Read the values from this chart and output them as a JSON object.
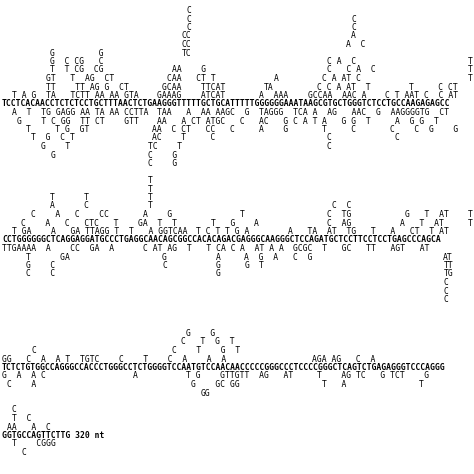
{
  "background": "#ffffff",
  "figsize": [
    4.74,
    4.74
  ],
  "dpi": 100,
  "lines": [
    {
      "row": 1,
      "text": "C",
      "col": 38,
      "bold": false
    },
    {
      "row": 2,
      "text": "C",
      "col": 38,
      "bold": false
    },
    {
      "row": 3,
      "text": "C",
      "col": 38,
      "bold": false
    },
    {
      "row": 4,
      "text": "CC",
      "col": 37,
      "bold": false
    },
    {
      "row": 5,
      "text": "CC",
      "col": 37,
      "bold": false
    },
    {
      "row": 2,
      "text": "C",
      "col": 72,
      "bold": false
    },
    {
      "row": 3,
      "text": "C",
      "col": 72,
      "bold": false
    },
    {
      "row": 4,
      "text": "A",
      "col": 72,
      "bold": false
    },
    {
      "row": 5,
      "text": "A  C",
      "col": 71,
      "bold": false
    },
    {
      "row": 6,
      "text": "G         G",
      "col": 10,
      "bold": false
    },
    {
      "row": 6,
      "text": "TC",
      "col": 37,
      "bold": false
    },
    {
      "row": 7,
      "text": "G  C CG   C",
      "col": 10,
      "bold": false
    },
    {
      "row": 7,
      "text": "C A  C",
      "col": 67,
      "bold": false
    },
    {
      "row": 7,
      "text": "T",
      "col": 96,
      "bold": false
    },
    {
      "row": 8,
      "text": "T  T CG  CG",
      "col": 10,
      "bold": false
    },
    {
      "row": 8,
      "text": "AA    G",
      "col": 35,
      "bold": false
    },
    {
      "row": 8,
      "text": "C   C A  C",
      "col": 67,
      "bold": false
    },
    {
      "row": 8,
      "text": "T",
      "col": 96,
      "bold": false
    },
    {
      "row": 9,
      "text": "GT   T  AG  CT",
      "col": 9,
      "bold": false
    },
    {
      "row": 9,
      "text": "CAA   CT T",
      "col": 34,
      "bold": false
    },
    {
      "row": 9,
      "text": "A",
      "col": 56,
      "bold": false
    },
    {
      "row": 9,
      "text": "C A AT C",
      "col": 66,
      "bold": false
    },
    {
      "row": 9,
      "text": "T",
      "col": 96,
      "bold": false
    },
    {
      "row": 10,
      "text": "TT    TT AG G  CT",
      "col": 9,
      "bold": false
    },
    {
      "row": 10,
      "text": "GCAA    TTCAT",
      "col": 33,
      "bold": false
    },
    {
      "row": 10,
      "text": "TA",
      "col": 54,
      "bold": false
    },
    {
      "row": 10,
      "text": "C C A AT  T",
      "col": 65,
      "bold": false
    },
    {
      "row": 10,
      "text": "T     C CT",
      "col": 84,
      "bold": false
    },
    {
      "row": 11,
      "text": "T A G  TA   TCTT AA AA GTA",
      "col": 2,
      "bold": false
    },
    {
      "row": 11,
      "text": "GAAAG    ATCAT",
      "col": 32,
      "bold": false
    },
    {
      "row": 11,
      "text": "A  AAA",
      "col": 53,
      "bold": false
    },
    {
      "row": 11,
      "text": "GCCAA  AAC A",
      "col": 63,
      "bold": false
    },
    {
      "row": 11,
      "text": "C T AAT C  C AT",
      "col": 79,
      "bold": false
    },
    {
      "row": 12,
      "text": "TCCTCACAACCTCTCTCCTGCTTTAACTCTGAAGGGTTTTTGCTGCATTTTTGGGGGGAAATAAGCGTGCTGGGTCTCCTGCCAAGAGAGCC",
      "col": 0,
      "bold": true
    },
    {
      "row": 13,
      "text": "A  T  TG GAGG AA TA AA CCTTA",
      "col": 2,
      "bold": false
    },
    {
      "row": 13,
      "text": "TAA   A  AA AAGC  G",
      "col": 32,
      "bold": false
    },
    {
      "row": 13,
      "text": "TAGGG  TCA A  AG   AAC  G  AAGGGGTG  CT",
      "col": 53,
      "bold": false
    },
    {
      "row": 14,
      "text": "G    T C GG  TT CT    GTT",
      "col": 3,
      "bold": false
    },
    {
      "row": 14,
      "text": "AA   A CT ATGC   C",
      "col": 32,
      "bold": false
    },
    {
      "row": 14,
      "text": "AC   G C A T",
      "col": 53,
      "bold": false
    },
    {
      "row": 14,
      "text": "A   G G  T",
      "col": 66,
      "bold": false
    },
    {
      "row": 14,
      "text": "A  G G  T",
      "col": 81,
      "bold": false
    },
    {
      "row": 15,
      "text": "T     T G  GT",
      "col": 5,
      "bold": false
    },
    {
      "row": 15,
      "text": "AA  C CT   CC   C",
      "col": 31,
      "bold": false
    },
    {
      "row": 15,
      "text": "A    G",
      "col": 53,
      "bold": false
    },
    {
      "row": 15,
      "text": "T     C",
      "col": 66,
      "bold": false
    },
    {
      "row": 15,
      "text": "C    C  G    G",
      "col": 80,
      "bold": false
    },
    {
      "row": 16,
      "text": "T  G  C T",
      "col": 6,
      "bold": false
    },
    {
      "row": 16,
      "text": "AC    T     C",
      "col": 31,
      "bold": false
    },
    {
      "row": 16,
      "text": "C",
      "col": 67,
      "bold": false
    },
    {
      "row": 16,
      "text": "C",
      "col": 81,
      "bold": false
    },
    {
      "row": 17,
      "text": "G    T",
      "col": 8,
      "bold": false
    },
    {
      "row": 17,
      "text": "TC    T",
      "col": 30,
      "bold": false
    },
    {
      "row": 17,
      "text": "C",
      "col": 67,
      "bold": false
    },
    {
      "row": 18,
      "text": "G",
      "col": 10,
      "bold": false
    },
    {
      "row": 18,
      "text": "C    G",
      "col": 30,
      "bold": false
    },
    {
      "row": 19,
      "text": "C    G",
      "col": 30,
      "bold": false
    },
    {
      "row": 21,
      "text": "T",
      "col": 30,
      "bold": false
    },
    {
      "row": 22,
      "text": "T",
      "col": 30,
      "bold": false
    },
    {
      "row": 23,
      "text": "T      T",
      "col": 10,
      "bold": false
    },
    {
      "row": 23,
      "text": "T",
      "col": 30,
      "bold": false
    },
    {
      "row": 24,
      "text": "A      C",
      "col": 10,
      "bold": false
    },
    {
      "row": 24,
      "text": "T",
      "col": 30,
      "bold": false
    },
    {
      "row": 24,
      "text": "C  C",
      "col": 68,
      "bold": false
    },
    {
      "row": 25,
      "text": "C    A   C    CC",
      "col": 6,
      "bold": false
    },
    {
      "row": 25,
      "text": "A    G",
      "col": 29,
      "bold": false
    },
    {
      "row": 25,
      "text": "T",
      "col": 49,
      "bold": false
    },
    {
      "row": 25,
      "text": "C  TG",
      "col": 67,
      "bold": false
    },
    {
      "row": 25,
      "text": "G   T  AT",
      "col": 83,
      "bold": false
    },
    {
      "row": 25,
      "text": "T",
      "col": 96,
      "bold": false
    },
    {
      "row": 26,
      "text": "C    A   C   CTC   T",
      "col": 4,
      "bold": false
    },
    {
      "row": 26,
      "text": "GA  T  T",
      "col": 28,
      "bold": false
    },
    {
      "row": 26,
      "text": "T   G",
      "col": 43,
      "bold": false
    },
    {
      "row": 26,
      "text": "A",
      "col": 52,
      "bold": false
    },
    {
      "row": 26,
      "text": "C  AG",
      "col": 67,
      "bold": false
    },
    {
      "row": 26,
      "text": "A   T  AT",
      "col": 82,
      "bold": false
    },
    {
      "row": 26,
      "text": "T",
      "col": 96,
      "bold": false
    },
    {
      "row": 27,
      "text": "T GA    A   GA TTAGG T  T   A GGTCAA",
      "col": 2,
      "bold": false
    },
    {
      "row": 27,
      "text": "T C T",
      "col": 40,
      "bold": false
    },
    {
      "row": 27,
      "text": "T G A",
      "col": 46,
      "bold": false
    },
    {
      "row": 27,
      "text": "A   TA  AT  TG   T   A   CT  T AT",
      "col": 59,
      "bold": false
    },
    {
      "row": 28,
      "text": "CCTGGGGGGCTCAGGAGGATGCCCTGAGGCAACAGCGGCCACACAGACGAGGGCAAGGGCTCCAGATGCTCCTTCCTCCTGAGCCCAGCA",
      "col": 0,
      "bold": true
    },
    {
      "row": 29,
      "text": "TTGAAAA  A    CC  GA  A",
      "col": 0,
      "bold": false
    },
    {
      "row": 29,
      "text": "C AT AG  T   T CA C",
      "col": 29,
      "bold": false
    },
    {
      "row": 29,
      "text": "A  AT A A",
      "col": 49,
      "bold": false
    },
    {
      "row": 29,
      "text": "GCGC  T   GC   TT   AGT   AT",
      "col": 60,
      "bold": false
    },
    {
      "row": 30,
      "text": "T      GA",
      "col": 5,
      "bold": false
    },
    {
      "row": 30,
      "text": "G",
      "col": 33,
      "bold": false
    },
    {
      "row": 30,
      "text": "A",
      "col": 44,
      "bold": false
    },
    {
      "row": 30,
      "text": "A  G  A",
      "col": 50,
      "bold": false
    },
    {
      "row": 30,
      "text": "C  G",
      "col": 60,
      "bold": false
    },
    {
      "row": 30,
      "text": "AT",
      "col": 91,
      "bold": false
    },
    {
      "row": 31,
      "text": "G    C",
      "col": 5,
      "bold": false
    },
    {
      "row": 31,
      "text": "C",
      "col": 33,
      "bold": false
    },
    {
      "row": 31,
      "text": "G",
      "col": 44,
      "bold": false
    },
    {
      "row": 31,
      "text": "G",
      "col": 50,
      "bold": false
    },
    {
      "row": 31,
      "text": "T",
      "col": 53,
      "bold": false
    },
    {
      "row": 31,
      "text": "TT",
      "col": 91,
      "bold": false
    },
    {
      "row": 32,
      "text": "C    C",
      "col": 5,
      "bold": false
    },
    {
      "row": 32,
      "text": "G",
      "col": 44,
      "bold": false
    },
    {
      "row": 32,
      "text": "TG",
      "col": 91,
      "bold": false
    },
    {
      "row": 33,
      "text": "C",
      "col": 91,
      "bold": false
    },
    {
      "row": 34,
      "text": "C",
      "col": 91,
      "bold": false
    },
    {
      "row": 35,
      "text": "C",
      "col": 91,
      "bold": false
    },
    {
      "row": 39,
      "text": "G    G",
      "col": 38,
      "bold": false
    },
    {
      "row": 40,
      "text": "C   T  G  T",
      "col": 37,
      "bold": false
    },
    {
      "row": 41,
      "text": "C",
      "col": 6,
      "bold": false
    },
    {
      "row": 41,
      "text": "C    T    G  T",
      "col": 35,
      "bold": false
    },
    {
      "row": 42,
      "text": "GG   C  A  A T  TGTC    C    T    C  A    A  A",
      "col": 0,
      "bold": false
    },
    {
      "row": 42,
      "text": "AGA AG   C  A",
      "col": 64,
      "bold": false
    },
    {
      "row": 43,
      "text": "TCTCTGTGGCCAGGGCCACCCTGGGCCTCTGGGGTCCAATGTCCAACAACCCCCGGGCCCTCCCCGGGCTCAGTCTGAGAGGGTCCCAGGG",
      "col": 0,
      "bold": true
    },
    {
      "row": 44,
      "text": "G  A  A C",
      "col": 0,
      "bold": false
    },
    {
      "row": 44,
      "text": "A",
      "col": 27,
      "bold": false
    },
    {
      "row": 44,
      "text": "T G    GTTGTT  AG   AT",
      "col": 38,
      "bold": false
    },
    {
      "row": 44,
      "text": "T    AG TC   G TCT    G",
      "col": 65,
      "bold": false
    },
    {
      "row": 45,
      "text": "C    A",
      "col": 1,
      "bold": false
    },
    {
      "row": 45,
      "text": "G    GC GG",
      "col": 39,
      "bold": false
    },
    {
      "row": 45,
      "text": "T   A",
      "col": 66,
      "bold": false
    },
    {
      "row": 45,
      "text": "T",
      "col": 86,
      "bold": false
    },
    {
      "row": 46,
      "text": "GG",
      "col": 41,
      "bold": false
    },
    {
      "row": 48,
      "text": "C",
      "col": 2,
      "bold": false
    },
    {
      "row": 49,
      "text": "T  C",
      "col": 2,
      "bold": false
    },
    {
      "row": 50,
      "text": "AA   A  C",
      "col": 1,
      "bold": false
    },
    {
      "row": 51,
      "text": "GGTGCCAGTTCTTG 320 nt",
      "col": 0,
      "bold": true
    },
    {
      "row": 52,
      "text": "T    CGGG",
      "col": 2,
      "bold": false
    },
    {
      "row": 53,
      "text": "C",
      "col": 4,
      "bold": false
    }
  ]
}
